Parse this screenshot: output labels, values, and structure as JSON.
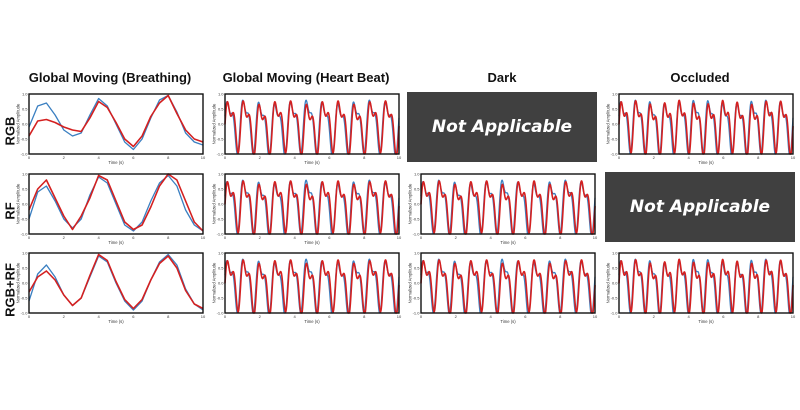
{
  "columns": [
    "Global Moving (Breathing)",
    "Global Moving (Heart Beat)",
    "Dark",
    "Occluded"
  ],
  "rows": [
    "RGB",
    "RF",
    "RGB+RF"
  ],
  "na_label": "Not Applicable",
  "colors": {
    "reference": "#3a7fc1",
    "estimate": "#d42020",
    "na_background": "#404040"
  },
  "chart_data": {
    "type": "line",
    "layout": "3x4 small multiples",
    "xlabel": "Time (s)",
    "ylabel": "Normalized Amplitude",
    "xlim": [
      0,
      10
    ],
    "ylim": [
      -1.0,
      1.0
    ],
    "xticks": [
      0,
      2,
      4,
      6,
      8,
      10
    ],
    "yticks": [
      -1.0,
      -0.5,
      0.0,
      0.5,
      1.0
    ],
    "series_colors": [
      "#3a7fc1",
      "#d42020"
    ],
    "panels": [
      {
        "row": "RGB",
        "column": "Global Moving (Breathing)",
        "applicable": true,
        "x": [
          0,
          0.5,
          1,
          1.5,
          2,
          2.5,
          3,
          3.5,
          4,
          4.5,
          5,
          5.5,
          6,
          6.5,
          7,
          7.5,
          8,
          8.5,
          9,
          9.5,
          10
        ],
        "series": [
          {
            "values": [
              -0.1,
              0.6,
              0.7,
              0.3,
              -0.2,
              -0.4,
              -0.3,
              0.3,
              0.85,
              0.6,
              0.0,
              -0.6,
              -0.85,
              -0.5,
              0.2,
              0.8,
              0.95,
              0.4,
              -0.3,
              -0.6,
              -0.7
            ]
          },
          {
            "values": [
              -0.4,
              0.1,
              0.15,
              0.05,
              -0.1,
              -0.2,
              -0.25,
              0.2,
              0.75,
              0.55,
              0.05,
              -0.5,
              -0.75,
              -0.4,
              0.25,
              0.7,
              0.95,
              0.35,
              -0.2,
              -0.5,
              -0.6
            ]
          }
        ]
      },
      {
        "row": "RGB",
        "column": "Global Moving (Heart Beat)",
        "applicable": true,
        "pattern": "periodic",
        "cycles": 11
      },
      {
        "row": "RGB",
        "column": "Dark",
        "applicable": false
      },
      {
        "row": "RGB",
        "column": "Occluded",
        "applicable": true,
        "pattern": "periodic",
        "cycles": 12
      },
      {
        "row": "RF",
        "column": "Global Moving (Breathing)",
        "applicable": true,
        "x": [
          0,
          0.5,
          1,
          1.5,
          2,
          2.5,
          3,
          3.5,
          4,
          4.5,
          5,
          5.5,
          6,
          6.5,
          7,
          7.5,
          8,
          8.5,
          9,
          9.5,
          10
        ],
        "series": [
          {
            "values": [
              -0.5,
              0.4,
              0.6,
              0.1,
              -0.5,
              -0.8,
              -0.5,
              0.3,
              0.9,
              0.7,
              0.0,
              -0.7,
              -0.9,
              -0.6,
              0.1,
              0.7,
              0.95,
              0.6,
              -0.2,
              -0.7,
              -0.9
            ]
          },
          {
            "values": [
              -0.2,
              0.5,
              0.8,
              0.2,
              -0.4,
              -0.85,
              -0.4,
              0.2,
              0.95,
              0.8,
              0.1,
              -0.6,
              -0.85,
              -0.7,
              -0.1,
              0.6,
              1.0,
              0.8,
              0.1,
              -0.6,
              -0.9
            ]
          }
        ]
      },
      {
        "row": "RF",
        "column": "Global Moving (Heart Beat)",
        "applicable": true,
        "pattern": "periodic",
        "cycles": 11
      },
      {
        "row": "RF",
        "column": "Dark",
        "applicable": true,
        "pattern": "periodic",
        "cycles": 11
      },
      {
        "row": "RF",
        "column": "Occluded",
        "applicable": false
      },
      {
        "row": "RGB+RF",
        "column": "Global Moving (Breathing)",
        "applicable": true,
        "x": [
          0,
          0.5,
          1,
          1.5,
          2,
          2.5,
          3,
          3.5,
          4,
          4.5,
          5,
          5.5,
          6,
          6.5,
          7,
          7.5,
          8,
          8.5,
          9,
          9.5,
          10
        ],
        "series": [
          {
            "values": [
              -0.6,
              0.3,
              0.6,
              0.2,
              -0.4,
              -0.75,
              -0.5,
              0.2,
              0.9,
              0.7,
              0.0,
              -0.6,
              -0.9,
              -0.6,
              0.1,
              0.7,
              0.95,
              0.6,
              -0.2,
              -0.7,
              -0.9
            ]
          },
          {
            "values": [
              -0.3,
              0.2,
              0.4,
              0.1,
              -0.4,
              -0.75,
              -0.5,
              0.25,
              0.95,
              0.75,
              0.05,
              -0.55,
              -0.85,
              -0.55,
              0.1,
              0.65,
              0.9,
              0.5,
              -0.25,
              -0.7,
              -0.85
            ]
          }
        ]
      },
      {
        "row": "RGB+RF",
        "column": "Global Moving (Heart Beat)",
        "applicable": true,
        "pattern": "periodic",
        "cycles": 11
      },
      {
        "row": "RGB+RF",
        "column": "Dark",
        "applicable": true,
        "pattern": "periodic",
        "cycles": 11
      },
      {
        "row": "RGB+RF",
        "column": "Occluded",
        "applicable": true,
        "pattern": "periodic",
        "cycles": 12
      }
    ]
  }
}
